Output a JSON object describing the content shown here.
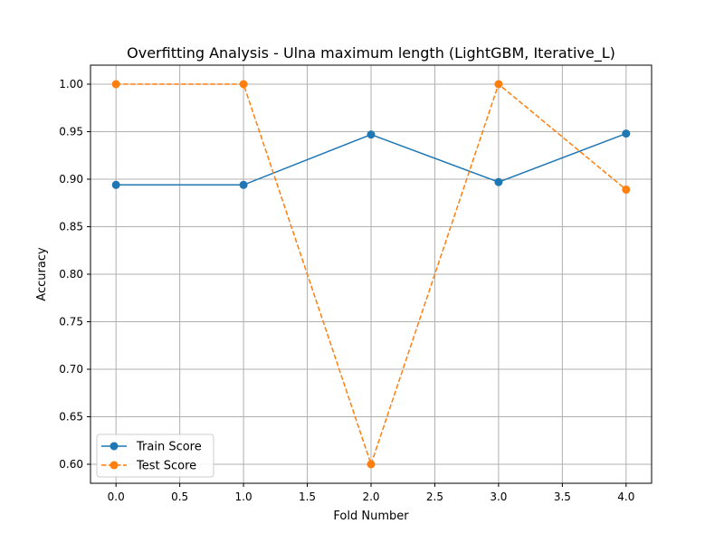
{
  "chart_data": {
    "type": "line",
    "title": "Overfitting Analysis - Ulna maximum length (LightGBM, Iterative_L)",
    "xlabel": "Fold Number",
    "ylabel": "Accuracy",
    "xlim": [
      -0.2,
      4.2
    ],
    "ylim": [
      0.58,
      1.02
    ],
    "xticks": [
      "0.0",
      "0.5",
      "1.0",
      "1.5",
      "2.0",
      "2.5",
      "3.0",
      "3.5",
      "4.0"
    ],
    "yticks": [
      "0.60",
      "0.65",
      "0.70",
      "0.75",
      "0.80",
      "0.85",
      "0.90",
      "0.95",
      "1.00"
    ],
    "grid": true,
    "legend_position": "lower-left",
    "x": [
      0,
      1,
      2,
      3,
      4
    ],
    "series": [
      {
        "name": "Train Score",
        "values": [
          0.894,
          0.894,
          0.947,
          0.897,
          0.948
        ],
        "color": "#1f77b4",
        "linestyle": "solid",
        "marker": "circle"
      },
      {
        "name": "Test Score",
        "values": [
          1.0,
          1.0,
          0.6,
          1.0,
          0.889
        ],
        "color": "#ff7f0e",
        "linestyle": "dashed",
        "marker": "circle"
      }
    ]
  }
}
